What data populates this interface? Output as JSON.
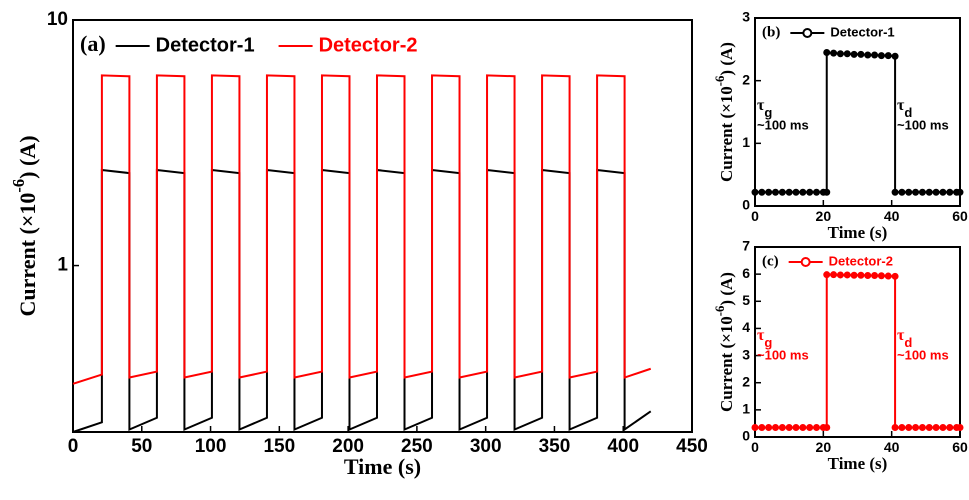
{
  "chart_data": [
    {
      "type": "line",
      "panel_label": "(a)",
      "ylabel": [
        "Current (×10",
        "-6",
        ") (A)"
      ],
      "xlabel": "Time (s)",
      "log_y": true,
      "xlim": [
        0,
        450
      ],
      "xticks": [
        0,
        50,
        100,
        150,
        200,
        250,
        300,
        350,
        400,
        450
      ],
      "ylim": [
        0.21,
        10
      ],
      "yticks": [
        1,
        10
      ],
      "legend": "top-left",
      "x": [
        0,
        21,
        21,
        41,
        41,
        61,
        61,
        81,
        81,
        101,
        101,
        121,
        121,
        141,
        141,
        161,
        161,
        181,
        181,
        201,
        201,
        221,
        221,
        241,
        241,
        261,
        261,
        281,
        281,
        301,
        301,
        321,
        321,
        341,
        341,
        361,
        361,
        381,
        381,
        401,
        401,
        420
      ],
      "series": [
        {
          "name": "Detector-1",
          "color": "#000000",
          "values": [
            0.21,
            0.23,
            2.45,
            2.38,
            0.215,
            0.24,
            2.45,
            2.38,
            0.215,
            0.24,
            2.45,
            2.38,
            0.215,
            0.24,
            2.45,
            2.38,
            0.215,
            0.24,
            2.45,
            2.38,
            0.215,
            0.24,
            2.45,
            2.38,
            0.215,
            0.24,
            2.45,
            2.38,
            0.215,
            0.24,
            2.45,
            2.38,
            0.215,
            0.24,
            2.45,
            2.38,
            0.215,
            0.24,
            2.45,
            2.38,
            0.215,
            0.255
          ]
        },
        {
          "name": "Detector-2",
          "color": "#ff0000",
          "values": [
            0.33,
            0.36,
            5.95,
            5.9,
            0.35,
            0.37,
            5.95,
            5.9,
            0.35,
            0.37,
            5.95,
            5.9,
            0.35,
            0.37,
            5.95,
            5.9,
            0.35,
            0.37,
            5.95,
            5.9,
            0.35,
            0.37,
            5.95,
            5.9,
            0.35,
            0.37,
            5.95,
            5.9,
            0.35,
            0.37,
            5.95,
            5.9,
            0.35,
            0.37,
            5.95,
            5.9,
            0.35,
            0.37,
            5.95,
            5.9,
            0.35,
            0.38
          ]
        }
      ]
    },
    {
      "type": "line",
      "panel_label": "(b)",
      "ylabel": [
        "Current (×10",
        "-6",
        ") (A)"
      ],
      "xlabel": "Time (s)",
      "xlim": [
        0,
        60
      ],
      "xticks": [
        0,
        20,
        40,
        60
      ],
      "ylim": [
        0,
        3
      ],
      "yticks": [
        0,
        1,
        2,
        3
      ],
      "legend": "top-left",
      "marker": "circle",
      "annotations": [
        {
          "symbol": "τ",
          "subscript": "g",
          "text": "~100 ms"
        },
        {
          "symbol": "τ",
          "subscript": "d",
          "text": "~100 ms"
        }
      ],
      "x": [
        0,
        2,
        4,
        6,
        8,
        10,
        12,
        14,
        16,
        18,
        20,
        21,
        21,
        23,
        25,
        27,
        29,
        31,
        33,
        35,
        37,
        39,
        41,
        41,
        43,
        45,
        47,
        49,
        51,
        53,
        55,
        57,
        59,
        60
      ],
      "series": [
        {
          "name": "Detector-1",
          "color": "#000000",
          "values": [
            0.22,
            0.22,
            0.22,
            0.22,
            0.22,
            0.22,
            0.22,
            0.22,
            0.22,
            0.22,
            0.22,
            0.22,
            2.45,
            2.44,
            2.43,
            2.43,
            2.42,
            2.42,
            2.41,
            2.41,
            2.4,
            2.4,
            2.39,
            0.22,
            0.22,
            0.22,
            0.22,
            0.22,
            0.22,
            0.22,
            0.22,
            0.22,
            0.22,
            0.22
          ]
        }
      ]
    },
    {
      "type": "line",
      "panel_label": "(c)",
      "ylabel": [
        "Current (×10",
        "-6",
        ") (A)"
      ],
      "xlabel": "Time (s)",
      "xlim": [
        0,
        60
      ],
      "xticks": [
        0,
        20,
        40,
        60
      ],
      "ylim": [
        0,
        7
      ],
      "yticks": [
        0,
        1,
        2,
        3,
        4,
        5,
        6,
        7
      ],
      "legend": "top-left",
      "marker": "circle",
      "annotations": [
        {
          "symbol": "τ",
          "subscript": "g",
          "text": "~100 ms"
        },
        {
          "symbol": "τ",
          "subscript": "d",
          "text": "~100 ms"
        }
      ],
      "x": [
        0,
        2,
        4,
        6,
        8,
        10,
        12,
        14,
        16,
        18,
        20,
        21,
        21,
        23,
        25,
        27,
        29,
        31,
        33,
        35,
        37,
        39,
        41,
        41,
        43,
        45,
        47,
        49,
        51,
        53,
        55,
        57,
        59,
        60
      ],
      "series": [
        {
          "name": "Detector-2",
          "color": "#ff0000",
          "values": [
            0.35,
            0.35,
            0.35,
            0.35,
            0.35,
            0.35,
            0.35,
            0.35,
            0.35,
            0.35,
            0.35,
            0.35,
            5.98,
            5.98,
            5.97,
            5.97,
            5.96,
            5.96,
            5.95,
            5.95,
            5.94,
            5.93,
            5.92,
            0.35,
            0.35,
            0.35,
            0.35,
            0.35,
            0.35,
            0.35,
            0.35,
            0.35,
            0.35,
            0.35
          ]
        }
      ]
    }
  ]
}
